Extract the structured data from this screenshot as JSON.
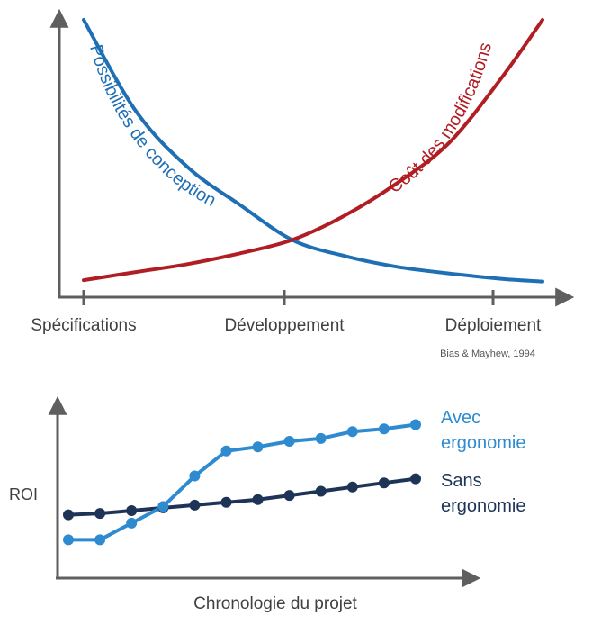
{
  "colors": {
    "axis": "#5f5f5f",
    "text": "#404040",
    "blue": "#1f6fb5",
    "red": "#b01e24",
    "light_blue": "#2e8bd0",
    "navy": "#1e3457",
    "source_text": "#555555"
  },
  "chart_data": [
    {
      "type": "line",
      "title": "",
      "xlabel": "",
      "ylabel": "",
      "categories": [
        "Spécifications",
        "Développement",
        "Déploiement"
      ],
      "xlim": [
        0,
        2.2
      ],
      "ylim": [
        0,
        100
      ],
      "grid": false,
      "source": "Bias & Mayhew, 1994",
      "series": [
        {
          "name": "Possibilités de conception",
          "color": "#1f6fb5",
          "x": [
            0,
            0.25,
            0.5,
            0.75,
            1,
            1.25,
            1.5,
            1.75,
            2,
            2.2
          ],
          "y": [
            100,
            66,
            45,
            31,
            18,
            12,
            8,
            5.5,
            3.5,
            2.5
          ]
        },
        {
          "name": "Coût des modifications",
          "color": "#b01e24",
          "x": [
            0,
            0.25,
            0.5,
            0.75,
            1,
            1.25,
            1.5,
            1.75,
            2,
            2.2
          ],
          "y": [
            3,
            6,
            9,
            13,
            18,
            27,
            39,
            54,
            78,
            100
          ]
        }
      ]
    },
    {
      "type": "line",
      "title": "",
      "xlabel": "Chronologie du projet",
      "ylabel": "ROI",
      "x": [
        1,
        2,
        3,
        4,
        5,
        6,
        7,
        8,
        9,
        10,
        11,
        12
      ],
      "xlim": [
        0,
        13.5
      ],
      "ylim": [
        0,
        100
      ],
      "grid": false,
      "series": [
        {
          "name": "Avec ergonomie",
          "color": "#2e8bd0",
          "values": [
            16,
            16,
            28,
            40,
            62,
            80,
            83,
            87,
            89,
            94,
            96,
            99
          ]
        },
        {
          "name": "Sans ergonomie",
          "color": "#1e3457",
          "values": [
            34,
            35,
            37,
            39,
            41,
            43,
            45,
            48,
            51,
            54,
            57,
            60
          ]
        }
      ]
    }
  ]
}
